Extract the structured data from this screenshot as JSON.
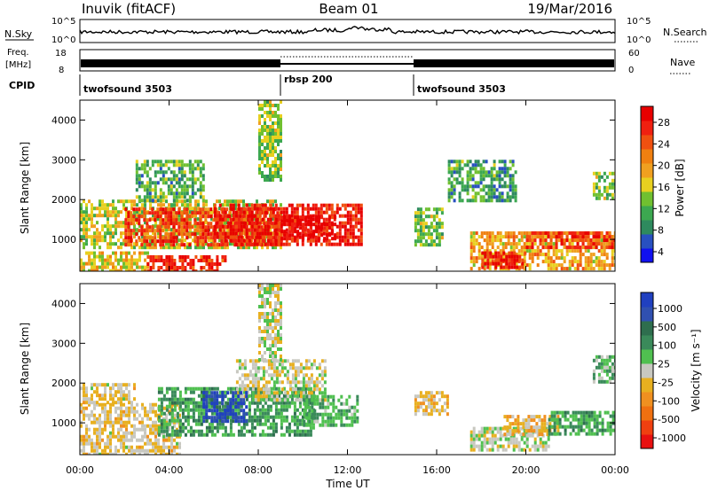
{
  "header": {
    "left_title": "Inuvik (fitACF)",
    "center_title": "Beam 01",
    "date": "19/Mar/2016"
  },
  "panels": {
    "nsky": {
      "label": "N.Sky",
      "ticks": [
        "10^5",
        "10^0"
      ],
      "right_label": "N.Search"
    },
    "freq": {
      "label_line1": "Freq.",
      "label_line2": "[MHz]",
      "ticks_left": [
        "18",
        "8"
      ],
      "ticks_right": [
        "60",
        "0"
      ],
      "right_label": "Nave"
    },
    "cpid": {
      "label": "CPID",
      "segments": [
        "twofsound 3503",
        "rbsp 200",
        "twofsound 3503"
      ]
    }
  },
  "colorbars": {
    "power": {
      "title": "Power [dB]",
      "ticks": [
        "28",
        "24",
        "20",
        "16",
        "12",
        "8",
        "4"
      ],
      "colors": [
        "#1010f0",
        "#2850c0",
        "#2e8a5e",
        "#3ca850",
        "#70c030",
        "#e8d020",
        "#f0a020",
        "#f08010",
        "#f05010",
        "#f02010",
        "#e80000"
      ]
    },
    "velocity": {
      "title": "Velocity [m s⁻¹]",
      "ticks": [
        "1000",
        "500",
        "100",
        "25",
        "-25",
        "-100",
        "-500",
        "-1000"
      ],
      "colors": [
        "#2040c0",
        "#3050b0",
        "#2e6e4e",
        "#3a8a5a",
        "#50c050",
        "#c8c8c0",
        "#e8b020",
        "#f09020",
        "#f07010",
        "#f04010",
        "#e81010"
      ]
    }
  },
  "axes": {
    "ylabel": "Slant Range [km]",
    "yticks": [
      "1000",
      "2000",
      "3000",
      "4000"
    ],
    "xticks": [
      "00:00",
      "04:00",
      "08:00",
      "12:00",
      "16:00",
      "20:00",
      "00:00"
    ],
    "xlabel": "Time UT"
  },
  "chart_data": [
    {
      "type": "heatmap",
      "name": "power",
      "xlim": [
        0,
        24
      ],
      "ylim": [
        200,
        4500
      ],
      "x_unit": "hours UT",
      "zlim": [
        0,
        30
      ],
      "regions": [
        {
          "t0": 0.0,
          "t1": 9.0,
          "r0": 800,
          "r1": 2000,
          "z": 14
        },
        {
          "t0": 2.0,
          "t1": 9.0,
          "r0": 900,
          "r1": 1800,
          "z": 24
        },
        {
          "t0": 6.0,
          "t1": 12.6,
          "r0": 900,
          "r1": 1900,
          "z": 27
        },
        {
          "t0": 9.0,
          "t1": 11.5,
          "r0": 1000,
          "r1": 1600,
          "z": 29
        },
        {
          "t0": 0.0,
          "t1": 3.0,
          "r0": 200,
          "r1": 700,
          "z": 16
        },
        {
          "t0": 3.0,
          "t1": 6.5,
          "r0": 200,
          "r1": 600,
          "z": 26
        },
        {
          "t0": 8.0,
          "t1": 9.0,
          "r0": 2500,
          "r1": 4500,
          "z": 12
        },
        {
          "t0": 2.5,
          "t1": 5.5,
          "r0": 2000,
          "r1": 3000,
          "z": 10
        },
        {
          "t0": 15.0,
          "t1": 16.3,
          "r0": 900,
          "r1": 1800,
          "z": 12
        },
        {
          "t0": 17.5,
          "t1": 24.0,
          "r0": 300,
          "r1": 1200,
          "z": 18
        },
        {
          "t0": 18.0,
          "t1": 20.0,
          "r0": 300,
          "r1": 700,
          "z": 28
        },
        {
          "t0": 20.0,
          "t1": 24.0,
          "r0": 800,
          "r1": 1200,
          "z": 24
        },
        {
          "t0": 16.5,
          "t1": 19.5,
          "r0": 2000,
          "r1": 3000,
          "z": 9
        },
        {
          "t0": 23.0,
          "t1": 24.0,
          "r0": 2000,
          "r1": 2700,
          "z": 12
        }
      ]
    },
    {
      "type": "heatmap",
      "name": "velocity",
      "xlim": [
        0,
        24
      ],
      "ylim": [
        200,
        4500
      ],
      "x_unit": "hours UT",
      "zlim": [
        -1000,
        1000
      ],
      "regions": [
        {
          "t0": 0.0,
          "t1": 4.5,
          "r0": 200,
          "r1": 1500,
          "z": -100
        },
        {
          "t0": 0.0,
          "t1": 2.5,
          "r0": 1500,
          "r1": 2000,
          "z": -100
        },
        {
          "t0": 3.5,
          "t1": 10.5,
          "r0": 700,
          "r1": 1900,
          "z": 300
        },
        {
          "t0": 7.0,
          "t1": 11.0,
          "r0": 1600,
          "r1": 2600,
          "z": 0
        },
        {
          "t0": 8.0,
          "t1": 9.0,
          "r0": 2600,
          "r1": 4500,
          "z": 0
        },
        {
          "t0": 5.5,
          "t1": 7.5,
          "r0": 1000,
          "r1": 1800,
          "z": 800
        },
        {
          "t0": 10.0,
          "t1": 12.5,
          "r0": 900,
          "r1": 1700,
          "z": 250
        },
        {
          "t0": 15.0,
          "t1": 16.5,
          "r0": 1200,
          "r1": 1800,
          "z": -120
        },
        {
          "t0": 17.5,
          "t1": 21.0,
          "r0": 300,
          "r1": 900,
          "z": 0
        },
        {
          "t0": 19.0,
          "t1": 21.5,
          "r0": 700,
          "r1": 1200,
          "z": -200
        },
        {
          "t0": 21.0,
          "t1": 24.0,
          "r0": 700,
          "r1": 1300,
          "z": 300
        },
        {
          "t0": 23.0,
          "t1": 24.0,
          "r0": 2000,
          "r1": 2700,
          "z": 200
        }
      ]
    }
  ]
}
